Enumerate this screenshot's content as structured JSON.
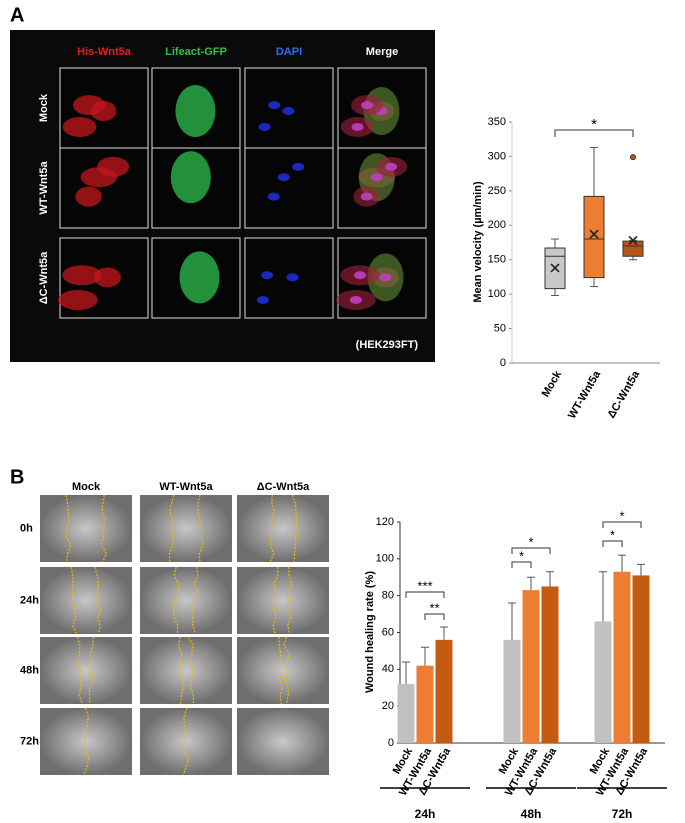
{
  "panel_a": {
    "label": "A",
    "columns": [
      "His-Wnt5a",
      "Lifeact-GFP",
      "DAPI",
      "Merge"
    ],
    "rows": [
      "Mock",
      "WT-Wnt5a",
      "ΔC-Wnt5a"
    ],
    "cell_line": "(HEK293FT)"
  },
  "panel_b": {
    "label": "B",
    "columns": [
      "Mock",
      "WT-Wnt5a",
      "ΔC-Wnt5a"
    ],
    "rows": [
      "0h",
      "24h",
      "48h",
      "72h"
    ]
  },
  "chart_data": [
    {
      "type": "box",
      "ylabel": "Mean velocity (µm/min)",
      "categories": [
        "Mock",
        "WT-Wnt5a",
        "ΔC-Wnt5a"
      ],
      "boxes": [
        {
          "min": 98,
          "q1": 108,
          "median": 155,
          "q3": 167,
          "max": 180,
          "mean": 138,
          "outliers": [],
          "color": "#c8c8c8"
        },
        {
          "min": 111,
          "q1": 124,
          "median": 180,
          "q3": 242,
          "max": 313,
          "mean": 187,
          "outliers": [],
          "color": "#ed7d31"
        },
        {
          "min": 150,
          "q1": 155,
          "median": 170,
          "q3": 177,
          "max": 178,
          "mean": 178,
          "outliers": [
            299
          ],
          "color": "#b8561a"
        }
      ],
      "significance": "*",
      "ylim": [
        0,
        350
      ],
      "yticks": [
        0,
        50,
        100,
        150,
        200,
        250,
        300,
        350
      ]
    },
    {
      "type": "bar",
      "ylabel": "Wound healing rate (%)",
      "groups": [
        "24h",
        "48h",
        "72h"
      ],
      "series": [
        {
          "name": "Mock",
          "color": "#c0c0c0",
          "values": [
            32,
            56,
            66
          ],
          "errors": [
            12,
            20,
            27
          ]
        },
        {
          "name": "WT-Wnt5a",
          "color": "#ed7d31",
          "values": [
            42,
            83,
            93
          ],
          "errors": [
            10,
            7,
            9
          ]
        },
        {
          "name": "ΔC-Wnt5a",
          "color": "#c55a11",
          "values": [
            56,
            85,
            91
          ],
          "errors": [
            7,
            8,
            6
          ]
        }
      ],
      "significance": [
        [
          "***",
          "**"
        ],
        [
          "*",
          "*"
        ],
        [
          "*",
          "*"
        ]
      ],
      "ylim": [
        0,
        120
      ],
      "yticks": [
        0,
        20,
        40,
        60,
        80,
        100,
        120
      ]
    }
  ]
}
